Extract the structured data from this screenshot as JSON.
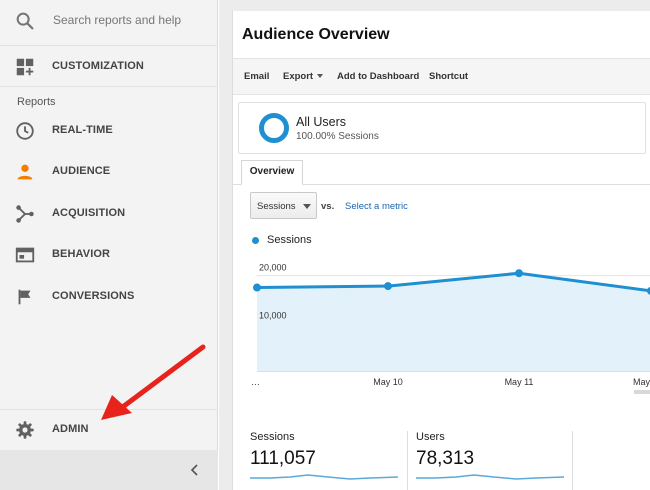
{
  "sidebar": {
    "search_placeholder": "Search reports and help",
    "customization_label": "CUSTOMIZATION",
    "reports_header": "Reports",
    "items": [
      {
        "label": "REAL-TIME",
        "icon": "clock-icon"
      },
      {
        "label": "AUDIENCE",
        "icon": "person-icon"
      },
      {
        "label": "ACQUISITION",
        "icon": "acquisition-icon"
      },
      {
        "label": "BEHAVIOR",
        "icon": "behavior-icon"
      },
      {
        "label": "CONVERSIONS",
        "icon": "flag-icon"
      }
    ],
    "admin_label": "ADMIN",
    "collapse_glyph": "‹"
  },
  "main": {
    "title": "Audience Overview",
    "toolbar": {
      "email": "Email",
      "export": "Export",
      "add_to_dashboard": "Add to Dashboard",
      "shortcut": "Shortcut"
    },
    "segment": {
      "name": "All Users",
      "sub": "100.00% Sessions"
    },
    "tab": "Overview",
    "metric_select": "Sessions",
    "vs": "vs.",
    "select_metric": "Select a metric",
    "legend": "Sessions"
  },
  "chart_data": {
    "type": "area",
    "series": [
      {
        "name": "Sessions",
        "values": [
          17500,
          17800,
          20500,
          16800
        ]
      }
    ],
    "x": [
      "…",
      "May 10",
      "May 11",
      "May"
    ],
    "y_ticks": [
      "20,000",
      "10,000"
    ],
    "ylim": [
      0,
      26000
    ],
    "color": "#1e8fd1",
    "fill": "#e3f1fa"
  },
  "stats": [
    {
      "label": "Sessions",
      "value": "111,057"
    },
    {
      "label": "Users",
      "value": "78,313"
    }
  ],
  "colors": {
    "accent": "#1e8fd1",
    "audience_icon": "#f57c00",
    "arrow": "#e8231c",
    "link": "#1a66b3"
  }
}
